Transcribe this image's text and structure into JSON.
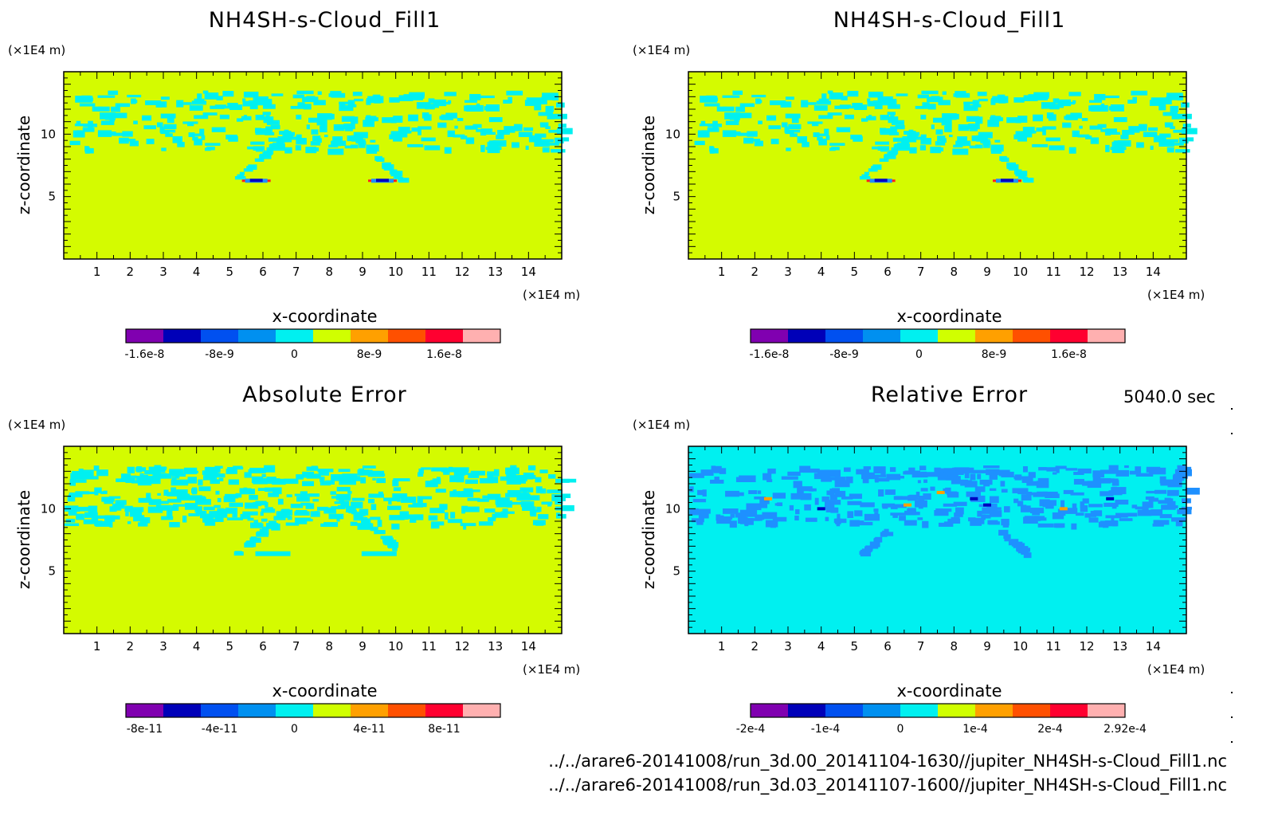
{
  "chart_data": [
    {
      "type": "heatmap",
      "title": "NH4SH-s-Cloud_Fill1",
      "xlabel": "x-coordinate",
      "ylabel": "z-coordinate",
      "x_unit": "(×1E4 m)",
      "y_unit": "(×1E4 m)",
      "xlim": [
        0,
        15
      ],
      "ylim": [
        0,
        15
      ],
      "xticks": [
        1,
        2,
        3,
        4,
        5,
        6,
        7,
        8,
        9,
        10,
        11,
        12,
        13,
        14
      ],
      "yticks": [
        5,
        10
      ],
      "background_level": "0 to 4e-9",
      "structure_level": "-4e-9 to 0",
      "colorbar": {
        "ticks": [
          "-1.6e-8",
          "-8e-9",
          "0",
          "8e-9",
          "1.6e-8"
        ],
        "colors": [
          "#8000b0",
          "#0000b8",
          "#0050f0",
          "#0090f0",
          "#00f0f0",
          "#d0ff00",
          "#ffa000",
          "#ff5000",
          "#ff0030",
          "#ffb0b0"
        ]
      }
    },
    {
      "type": "heatmap",
      "title": "NH4SH-s-Cloud_Fill1",
      "xlabel": "x-coordinate",
      "ylabel": "z-coordinate",
      "x_unit": "(×1E4 m)",
      "y_unit": "(×1E4 m)",
      "xlim": [
        0,
        15
      ],
      "ylim": [
        0,
        15
      ],
      "xticks": [
        1,
        2,
        3,
        4,
        5,
        6,
        7,
        8,
        9,
        10,
        11,
        12,
        13,
        14
      ],
      "yticks": [
        5,
        10
      ],
      "background_level": "0 to 4e-9",
      "structure_level": "-4e-9 to 0",
      "colorbar": {
        "ticks": [
          "-1.6e-8",
          "-8e-9",
          "0",
          "8e-9",
          "1.6e-8"
        ],
        "colors": [
          "#8000b0",
          "#0000b8",
          "#0050f0",
          "#0090f0",
          "#00f0f0",
          "#d0ff00",
          "#ffa000",
          "#ff5000",
          "#ff0030",
          "#ffb0b0"
        ]
      }
    },
    {
      "type": "heatmap",
      "title": "Absolute Error",
      "xlabel": "x-coordinate",
      "ylabel": "z-coordinate",
      "x_unit": "(×1E4 m)",
      "y_unit": "(×1E4 m)",
      "xlim": [
        0,
        15
      ],
      "ylim": [
        0,
        15
      ],
      "xticks": [
        1,
        2,
        3,
        4,
        5,
        6,
        7,
        8,
        9,
        10,
        11,
        12,
        13,
        14
      ],
      "yticks": [
        5,
        10
      ],
      "background_level": "0 to 2e-11",
      "structure_level": "-2e-11 to 0",
      "colorbar": {
        "ticks": [
          "-8e-11",
          "-4e-11",
          "0",
          "4e-11",
          "8e-11"
        ],
        "colors": [
          "#8000b0",
          "#0000b8",
          "#0050f0",
          "#0090f0",
          "#00f0f0",
          "#d0ff00",
          "#ffa000",
          "#ff5000",
          "#ff0030",
          "#ffb0b0"
        ]
      }
    },
    {
      "type": "heatmap",
      "title": "Relative Error",
      "xlabel": "x-coordinate",
      "ylabel": "z-coordinate",
      "x_unit": "(×1E4 m)",
      "y_unit": "(×1E4 m)",
      "xlim": [
        0,
        15
      ],
      "ylim": [
        0,
        15
      ],
      "xticks": [
        1,
        2,
        3,
        4,
        5,
        6,
        7,
        8,
        9,
        10,
        11,
        12,
        13,
        14
      ],
      "yticks": [
        5,
        10
      ],
      "background_level": "-5e-5 to 0",
      "structure_level": "-1e-4 to -5e-5",
      "colorbar": {
        "ticks": [
          "-2e-4",
          "-1e-4",
          "0",
          "1e-4",
          "2e-4",
          "2.92e-4"
        ],
        "colors": [
          "#8000b0",
          "#0000b8",
          "#0050f0",
          "#0090f0",
          "#00f0f0",
          "#d0ff00",
          "#ffa000",
          "#ff5000",
          "#ff0030",
          "#ffb0b0"
        ]
      }
    }
  ],
  "time_label": "5040.0 sec",
  "file_paths": [
    "../../arare6-20141008/run_3d.00_20141104-1630//jupiter_NH4SH-s-Cloud_Fill1.nc",
    "../../arare6-20141008/run_3d.03_20141107-1600//jupiter_NH4SH-s-Cloud_Fill1.nc"
  ]
}
